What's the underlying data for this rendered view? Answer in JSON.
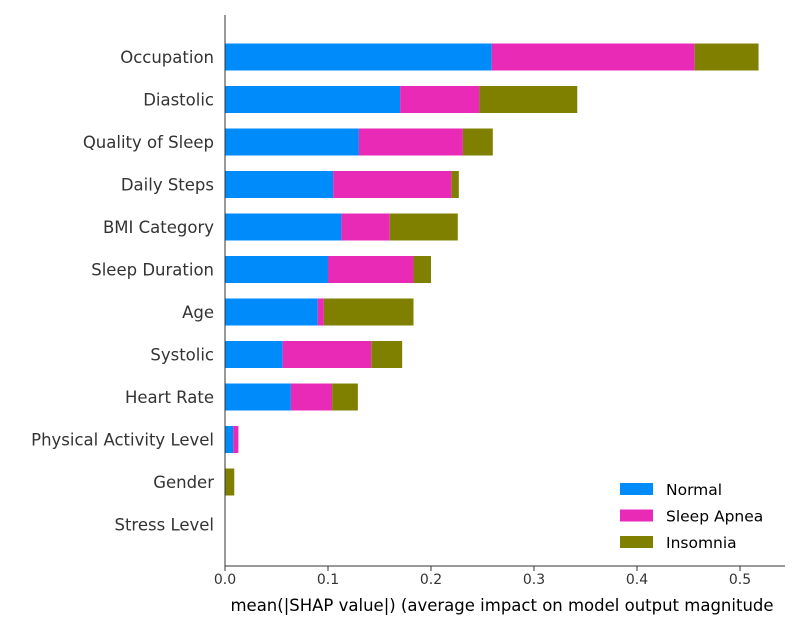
{
  "chart_data": {
    "type": "bar",
    "orientation": "horizontal",
    "stacked": true,
    "title": "",
    "xlabel": "mean(|SHAP value|) (average impact on model output magnitude",
    "ylabel": "",
    "xlim": [
      0,
      0.545
    ],
    "x_ticks": [
      "0.0",
      "0.1",
      "0.2",
      "0.3",
      "0.4",
      "0.5"
    ],
    "grid": false,
    "legend_position": "lower-right",
    "categories": [
      "Occupation",
      "Diastolic",
      "Quality of Sleep",
      "Daily Steps",
      "BMI Category",
      "Sleep Duration",
      "Age",
      "Systolic",
      "Heart Rate",
      "Physical Activity Level",
      "Gender",
      "Stress Level"
    ],
    "series": [
      {
        "name": "Normal",
        "color": "#008bfb",
        "values": [
          0.259,
          0.17,
          0.13,
          0.105,
          0.113,
          0.1,
          0.09,
          0.056,
          0.064,
          0.008,
          0.0,
          0.0
        ]
      },
      {
        "name": "Sleep Apnea",
        "color": "#e92ab6",
        "values": [
          0.197,
          0.077,
          0.101,
          0.115,
          0.047,
          0.083,
          0.006,
          0.086,
          0.04,
          0.005,
          0.0,
          0.0
        ]
      },
      {
        "name": "Insomnia",
        "color": "#808000",
        "values": [
          0.062,
          0.095,
          0.029,
          0.007,
          0.066,
          0.017,
          0.087,
          0.03,
          0.025,
          0.0,
          0.009,
          0.0
        ]
      }
    ]
  }
}
